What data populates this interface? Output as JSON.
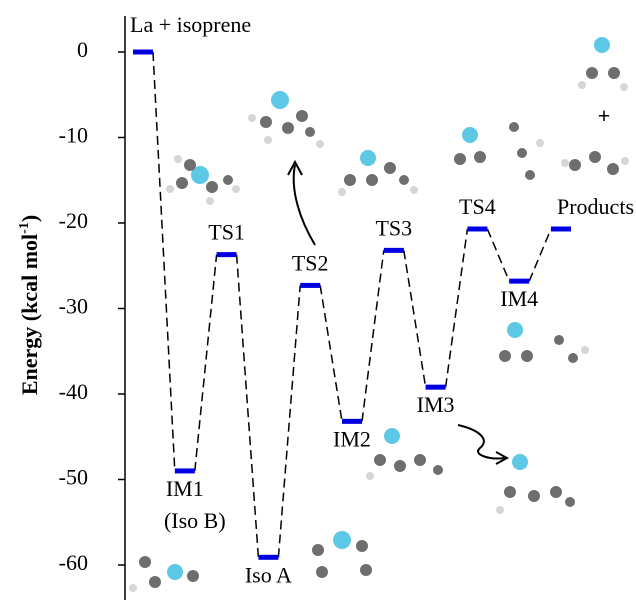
{
  "chart_data": {
    "type": "energy-profile",
    "y_label": "Energy (kcal mol",
    "y_label_sup": "-1",
    "y_label_end": ")",
    "categories": [
      "La + isoprene",
      "IM1",
      "TS1",
      "Iso A",
      "TS2",
      "IM2",
      "TS3",
      "IM3",
      "TS4",
      "IM4",
      "Products"
    ],
    "values": [
      0,
      -49,
      -23.7,
      -59.1,
      -27.3,
      -43.2,
      -23.2,
      -39.2,
      -20.7,
      -26.8,
      -20.7
    ],
    "annotations": [
      "(Iso B)",
      "+"
    ],
    "color": "#0000e0",
    "ylim": [
      -64,
      4
    ],
    "yticks": [
      -60,
      -50,
      -40,
      -30,
      -20,
      -10,
      0
    ]
  }
}
